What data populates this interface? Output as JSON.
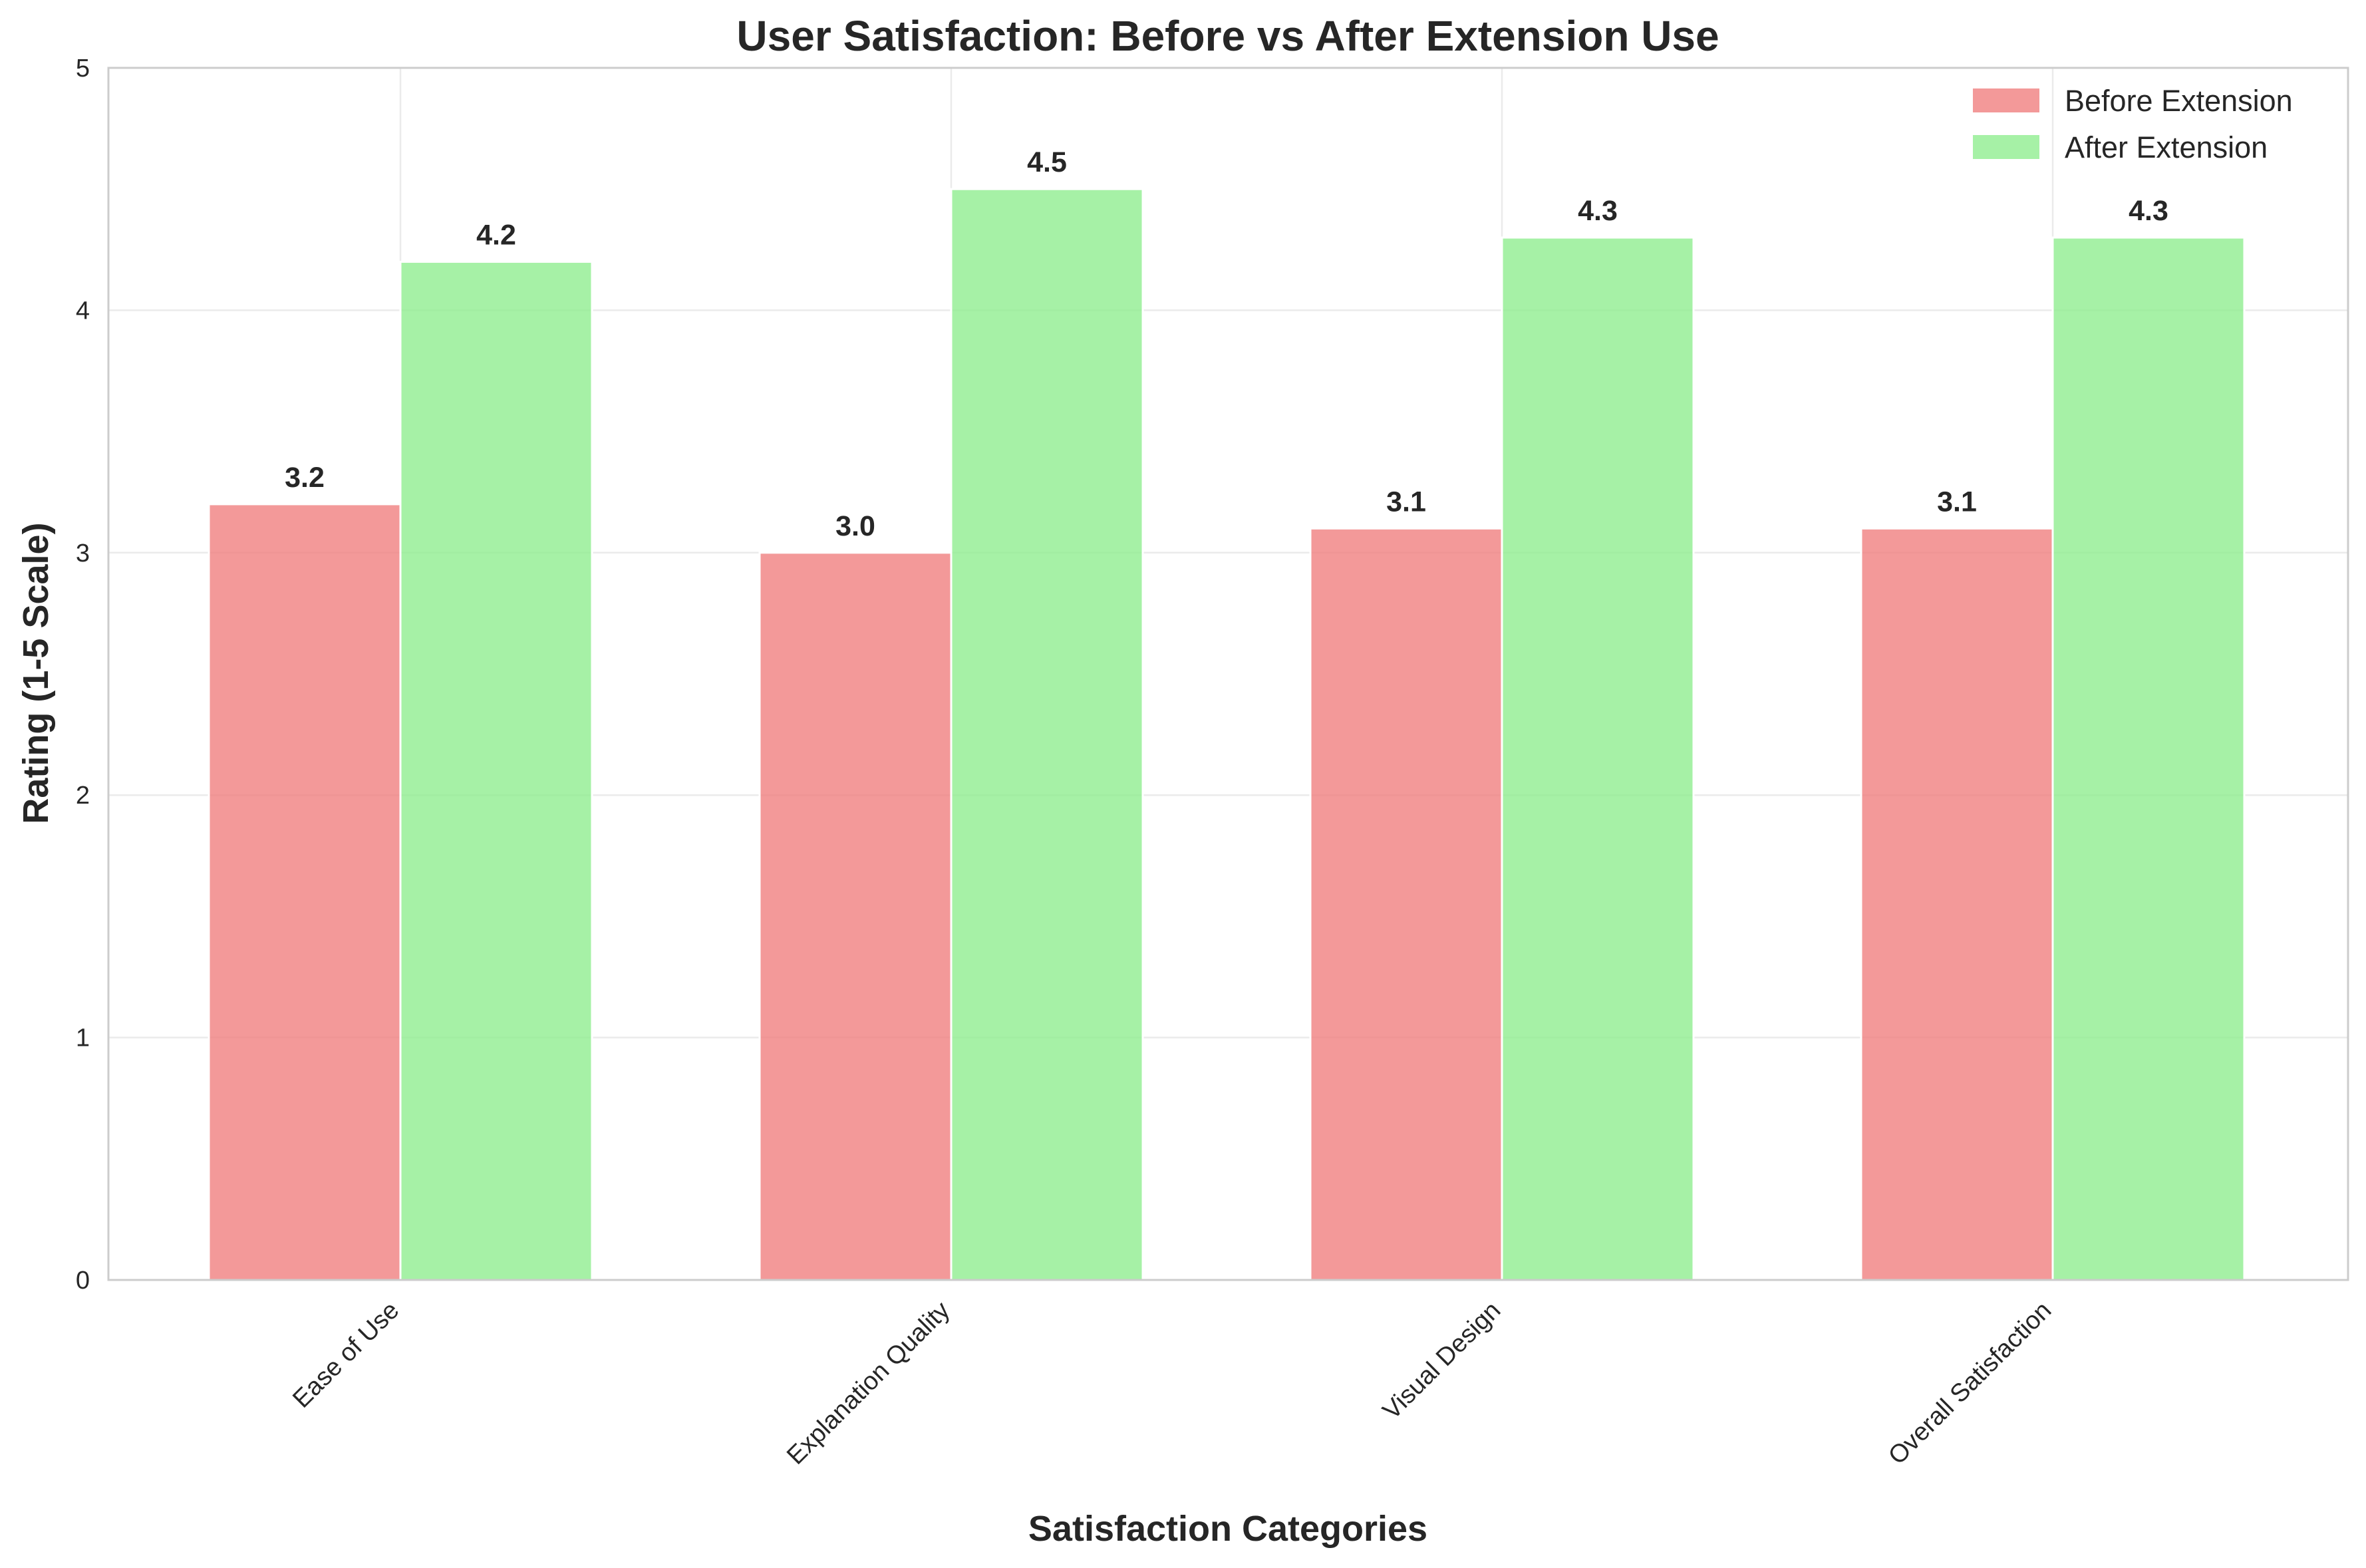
{
  "chart_data": {
    "type": "bar",
    "title": "User Satisfaction: Before vs After Extension Use",
    "xlabel": "Satisfaction Categories",
    "ylabel": "Rating (1-5 Scale)",
    "ylim": [
      0,
      5
    ],
    "yticks": [
      0,
      1,
      2,
      3,
      4,
      5
    ],
    "grid": true,
    "legend_position": "top-right",
    "categories": [
      "Ease of Use",
      "Explanation Quality",
      "Visual Design",
      "Overall Satisfaction"
    ],
    "series": [
      {
        "name": "Before Extension",
        "values": [
          3.2,
          3.0,
          3.1,
          3.1
        ],
        "labels": [
          "3.2",
          "3.0",
          "3.1",
          "3.1"
        ],
        "color": "#f08080"
      },
      {
        "name": "After Extension",
        "values": [
          4.2,
          4.5,
          4.3,
          4.3
        ],
        "labels": [
          "4.2",
          "4.5",
          "4.3",
          "4.3"
        ],
        "color": "#90ee90"
      }
    ]
  }
}
